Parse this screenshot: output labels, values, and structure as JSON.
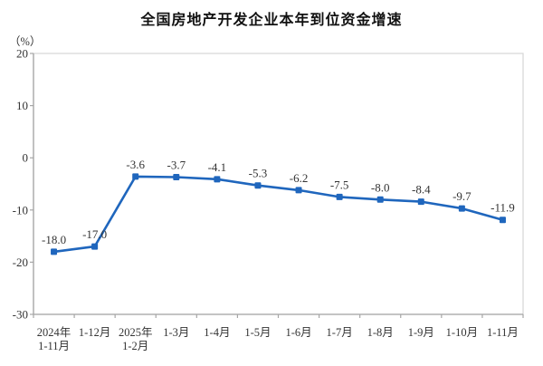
{
  "chart": {
    "background": "#ffffff",
    "border_color": "#d9d9d9",
    "axis_color": "#a6a6a6",
    "text_color": "#333333",
    "title_color": "#111111"
  },
  "chart_data": {
    "type": "line",
    "title": "全国房地产开发企业本年到位资金增速",
    "ylabel": "（%）",
    "categories": [
      "2024年\n1-11月",
      "1-12月",
      "2025年\n1-2月",
      "1-3月",
      "1-4月",
      "1-5月",
      "1-6月",
      "1-7月",
      "1-8月",
      "1-9月",
      "1-10月",
      "1-11月"
    ],
    "values": [
      -18.0,
      -17.0,
      -3.6,
      -3.7,
      -4.1,
      -5.3,
      -6.2,
      -7.5,
      -8.0,
      -8.4,
      -9.7,
      -11.9
    ],
    "data_labels": [
      "-18.0",
      "-17.0",
      "-3.6",
      "-3.7",
      "-4.1",
      "-5.3",
      "-6.2",
      "-7.5",
      "-8.0",
      "-8.4",
      "-9.7",
      "-11.9"
    ],
    "ylim": [
      -30,
      20
    ],
    "yticks": [
      20,
      10,
      0,
      -10,
      -20,
      -30
    ],
    "grid": false,
    "legend": false,
    "series_color": "#1f66bd",
    "marker": "square",
    "xlabel": ""
  }
}
